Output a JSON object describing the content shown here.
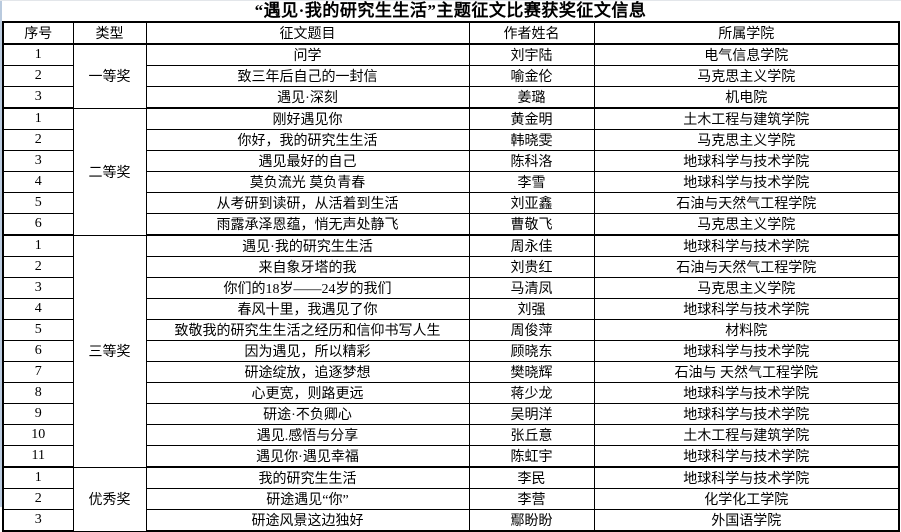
{
  "title": "“遇见·我的研究生生活”主题征文比赛获奖征文信息",
  "table": {
    "headers": [
      "序号",
      "类型",
      "征文题目",
      "作者姓名",
      "所属学院"
    ],
    "groups": [
      {
        "type": "一等奖",
        "rows": [
          {
            "no": "1",
            "title": "问学",
            "author": "刘宇陆",
            "college": "电气信息学院"
          },
          {
            "no": "2",
            "title": "致三年后自己的一封信",
            "author": "喻金伦",
            "college": "马克思主义学院"
          },
          {
            "no": "3",
            "title": "遇见·深刻",
            "author": "姜璐",
            "college": "机电院"
          }
        ]
      },
      {
        "type": "二等奖",
        "rows": [
          {
            "no": "1",
            "title": "刚好遇见你",
            "author": "黄金明",
            "college": "土木工程与建筑学院"
          },
          {
            "no": "2",
            "title": "你好，我的研究生生活",
            "author": "韩晓雯",
            "college": "马克思主义学院"
          },
          {
            "no": "3",
            "title": "遇见最好的自己",
            "author": "陈科洛",
            "college": "地球科学与技术学院"
          },
          {
            "no": "4",
            "title": "莫负流光 莫负青春",
            "author": "李雪",
            "college": "地球科学与技术学院"
          },
          {
            "no": "5",
            "title": "从考研到读研，从活着到生活",
            "author": "刘亚鑫",
            "college": "石油与天然气工程学院"
          },
          {
            "no": "6",
            "title": "雨露承泽恩蕴，悄无声处静飞",
            "author": "曹敬飞",
            "college": "马克思主义学院"
          }
        ]
      },
      {
        "type": "三等奖",
        "rows": [
          {
            "no": "1",
            "title": "遇见·我的研究生生活",
            "author": "周永佳",
            "college": "地球科学与技术学院"
          },
          {
            "no": "2",
            "title": "来自象牙塔的我",
            "author": "刘贵红",
            "college": "石油与天然气工程学院"
          },
          {
            "no": "3",
            "title": "你们的18岁——24岁的我们",
            "author": "马清凤",
            "college": "马克思主义学院"
          },
          {
            "no": "4",
            "title": "春风十里，我遇见了你",
            "author": "刘强",
            "college": "地球科学与技术学院"
          },
          {
            "no": "5",
            "title": "致敬我的研究生生活之经历和信仰书写人生",
            "author": "周俊萍",
            "college": "材料院"
          },
          {
            "no": "6",
            "title": "因为遇见，所以精彩",
            "author": "顾晓东",
            "college": "地球科学与技术学院"
          },
          {
            "no": "7",
            "title": "研途绽放，追逐梦想",
            "author": "樊晓辉",
            "college": "石油与 天然气工程学院"
          },
          {
            "no": "8",
            "title": "心更宽，则路更远",
            "author": "蒋少龙",
            "college": "地球科学与技术学院"
          },
          {
            "no": "9",
            "title": "研途·不负卿心",
            "author": "吴明洋",
            "college": "地球科学与技术学院"
          },
          {
            "no": "10",
            "title": "遇见.感悟与分享",
            "author": "张丘意",
            "college": "土木工程与建筑学院"
          },
          {
            "no": "11",
            "title": "遇见你·遇见幸福",
            "author": "陈虹宇",
            "college": "地球科学与技术学院"
          }
        ]
      },
      {
        "type": "优秀奖",
        "rows": [
          {
            "no": "1",
            "title": "我的研究生生活",
            "author": "李民",
            "college": "地球科学与技术学院"
          },
          {
            "no": "2",
            "title": "研途遇见“你”",
            "author": "李营",
            "college": "化学化工学院"
          },
          {
            "no": "3",
            "title": "研途风景这边独好",
            "author": "鄢盼盼",
            "college": "外国语学院"
          }
        ]
      }
    ]
  }
}
